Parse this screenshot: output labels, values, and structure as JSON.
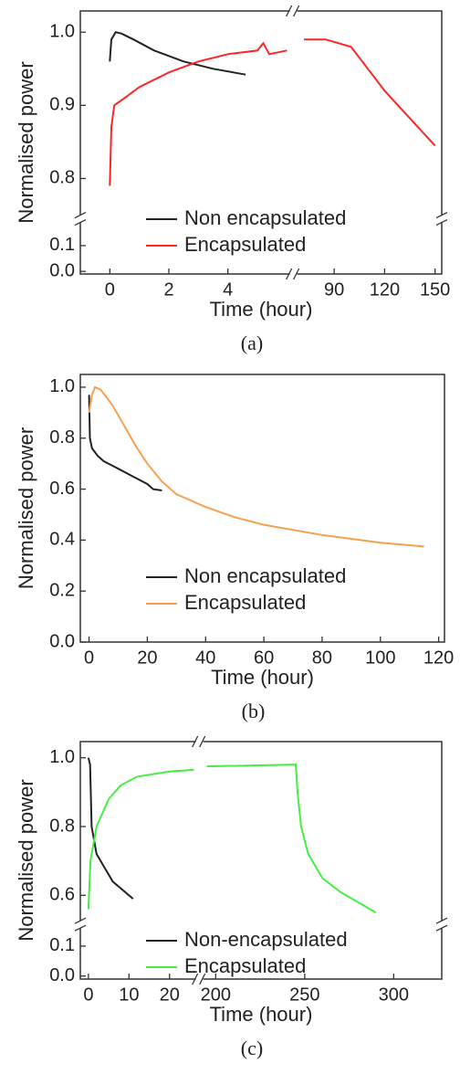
{
  "chart_data": [
    {
      "type": "line",
      "caption": "(a)",
      "x_label": "Time (hour)",
      "y_label": "Normalised power",
      "legend": "lower center",
      "x_segments": [
        {
          "xlim": [
            -1,
            6.1
          ],
          "xticks": [
            0,
            2,
            4
          ]
        },
        {
          "xlim": [
            68,
            154
          ],
          "xticks": [
            90,
            120,
            150
          ]
        }
      ],
      "y_segments": [
        {
          "ylim": [
            -0.01,
            0.19
          ],
          "yticks": [
            {
              "value": 0,
              "label": "0.0"
            },
            0.1
          ]
        },
        {
          "ylim": [
            0.75,
            1.029
          ],
          "yticks": [
            0.8,
            0.9,
            {
              "value": 1,
              "label": "1.0"
            }
          ]
        }
      ],
      "series": [
        {
          "name": "Non encapsulated",
          "color": "#222222",
          "x": [
            0,
            0.05,
            0.2,
            0.4,
            0.8,
            1.5,
            2.5,
            3.5,
            4.6
          ],
          "values": [
            0.96,
            0.99,
            1.0,
            0.998,
            0.99,
            0.975,
            0.96,
            0.95,
            0.942
          ]
        },
        {
          "name": "Encapsulated",
          "color": "#ff2424",
          "x": [
            0,
            0.05,
            0.15,
            0.5,
            1,
            2,
            3,
            4,
            5,
            5.2,
            5.4,
            6,
            null,
            72,
            85,
            100,
            110,
            120,
            130,
            140,
            150
          ],
          "values": [
            0.79,
            0.87,
            0.9,
            0.91,
            0.925,
            0.945,
            0.96,
            0.97,
            0.975,
            0.985,
            0.97,
            0.975,
            null,
            0.99,
            0.99,
            0.98,
            0.95,
            0.92,
            0.895,
            0.87,
            0.845
          ]
        }
      ]
    },
    {
      "type": "line",
      "caption": "(b)",
      "x_label": "Time (hour)",
      "y_label": "Normalised power",
      "legend": "lower center",
      "xlim": [
        -3,
        122
      ],
      "xticks": [
        0,
        20,
        40,
        60,
        80,
        100,
        120
      ],
      "ylim": [
        0,
        1.05
      ],
      "yticks": [
        {
          "value": 0,
          "label": "0.0"
        },
        0.2,
        0.4,
        0.6,
        0.8,
        {
          "value": 1,
          "label": "1.0"
        }
      ],
      "series": [
        {
          "name": "Non encapsulated",
          "color": "#222222",
          "x": [
            0,
            0.3,
            1,
            3,
            5,
            10,
            15,
            20,
            22,
            25
          ],
          "values": [
            0.97,
            0.8,
            0.76,
            0.73,
            0.71,
            0.68,
            0.65,
            0.62,
            0.6,
            0.595
          ]
        },
        {
          "name": "Encapsulated",
          "color": "#f5a050",
          "x": [
            0,
            1,
            2,
            4,
            8,
            12,
            16,
            20,
            25,
            30,
            40,
            50,
            60,
            70,
            80,
            90,
            100,
            115
          ],
          "values": [
            0.9,
            0.97,
            1.0,
            0.99,
            0.93,
            0.85,
            0.77,
            0.7,
            0.63,
            0.58,
            0.53,
            0.49,
            0.46,
            0.44,
            0.42,
            0.405,
            0.39,
            0.375
          ]
        }
      ]
    },
    {
      "type": "line",
      "caption": "(c)",
      "x_label": "Time (hour)",
      "y_label": "Normalised power",
      "legend": "lower center",
      "x_segments": [
        {
          "xlim": [
            -2,
            26.5
          ],
          "xticks": [
            0,
            10,
            20
          ]
        },
        {
          "xlim": [
            193,
            327
          ],
          "xticks": [
            200,
            250,
            300
          ]
        }
      ],
      "y_segments": [
        {
          "ylim": [
            -0.01,
            0.16
          ],
          "yticks": [
            {
              "value": 0,
              "label": "0.0"
            },
            0.1
          ]
        },
        {
          "ylim": [
            0.526,
            1.047
          ],
          "yticks": [
            0.6,
            0.8,
            {
              "value": 1,
              "label": "1.0"
            }
          ]
        }
      ],
      "series": [
        {
          "name": "Non-encapsulated",
          "color": "#222222",
          "x": [
            0,
            0.4,
            0.8,
            2,
            4,
            6,
            8,
            10,
            11
          ],
          "values": [
            1.0,
            0.98,
            0.8,
            0.72,
            0.68,
            0.64,
            0.62,
            0.6,
            0.59
          ]
        },
        {
          "name": "Encapsulated",
          "color": "#44ee44",
          "x": [
            0,
            0.5,
            2,
            5,
            8,
            12,
            20,
            26,
            null,
            195,
            245,
            246,
            248,
            252,
            260,
            270,
            280,
            290
          ],
          "values": [
            0.56,
            0.7,
            0.8,
            0.88,
            0.92,
            0.945,
            0.96,
            0.965,
            null,
            0.975,
            0.98,
            0.9,
            0.8,
            0.72,
            0.65,
            0.61,
            0.58,
            0.55
          ]
        }
      ]
    }
  ]
}
